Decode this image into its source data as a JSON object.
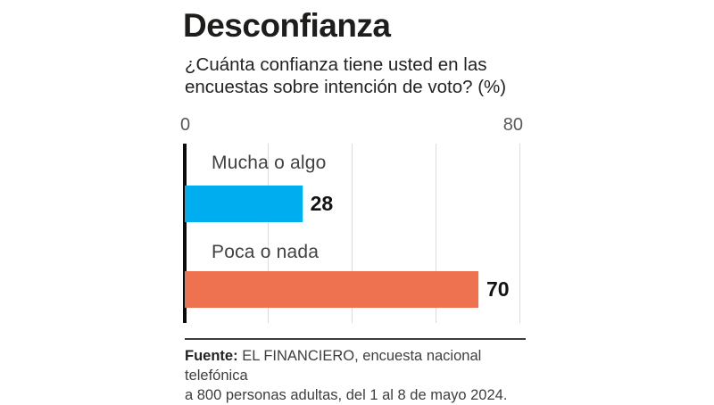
{
  "title": "Desconfianza",
  "subtitle_lines": [
    "¿Cuánta confianza tiene usted en las",
    "encuestas sobre intención de voto? (%)"
  ],
  "axis": {
    "ticks": [
      "0",
      "80"
    ]
  },
  "bars": [
    {
      "label": "Mucha o algo",
      "value": 28,
      "color": "#00ADEF"
    },
    {
      "label": "Poca o nada",
      "value": 70,
      "color": "#EE7250"
    }
  ],
  "footer": {
    "source_label": "Fuente:",
    "source_line1": "EL FINANCIERO, encuesta nacional telefónica",
    "source_line2": "a 800 personas adultas, del 1 al 8 de mayo 2024."
  },
  "colors": {
    "axis_line": "#0B0B0B",
    "gridline": "#DBDBDB",
    "title_text": "#1E1D1B",
    "tick_label": "#58595B",
    "bar_label": "#414042",
    "value_text": "#131313"
  },
  "chart_data": {
    "type": "bar",
    "orientation": "horizontal",
    "title": "Desconfianza",
    "subtitle": "¿Cuánta confianza tiene usted en las encuestas sobre intención de voto? (%)",
    "categories": [
      "Mucha o algo",
      "Poca o nada"
    ],
    "values": [
      28,
      70
    ],
    "bar_colors": [
      "#00ADEF",
      "#EE7250"
    ],
    "xlim": [
      0,
      80
    ],
    "x_tick_labels": [
      "0",
      "80"
    ],
    "gridlines_at": [
      20,
      40,
      60,
      80
    ],
    "grid": true,
    "legend": false,
    "data_labels": true,
    "source": "Fuente: EL FINANCIERO, encuesta nacional telefónica a 800 personas adultas, del 1 al 8 de mayo 2024."
  }
}
